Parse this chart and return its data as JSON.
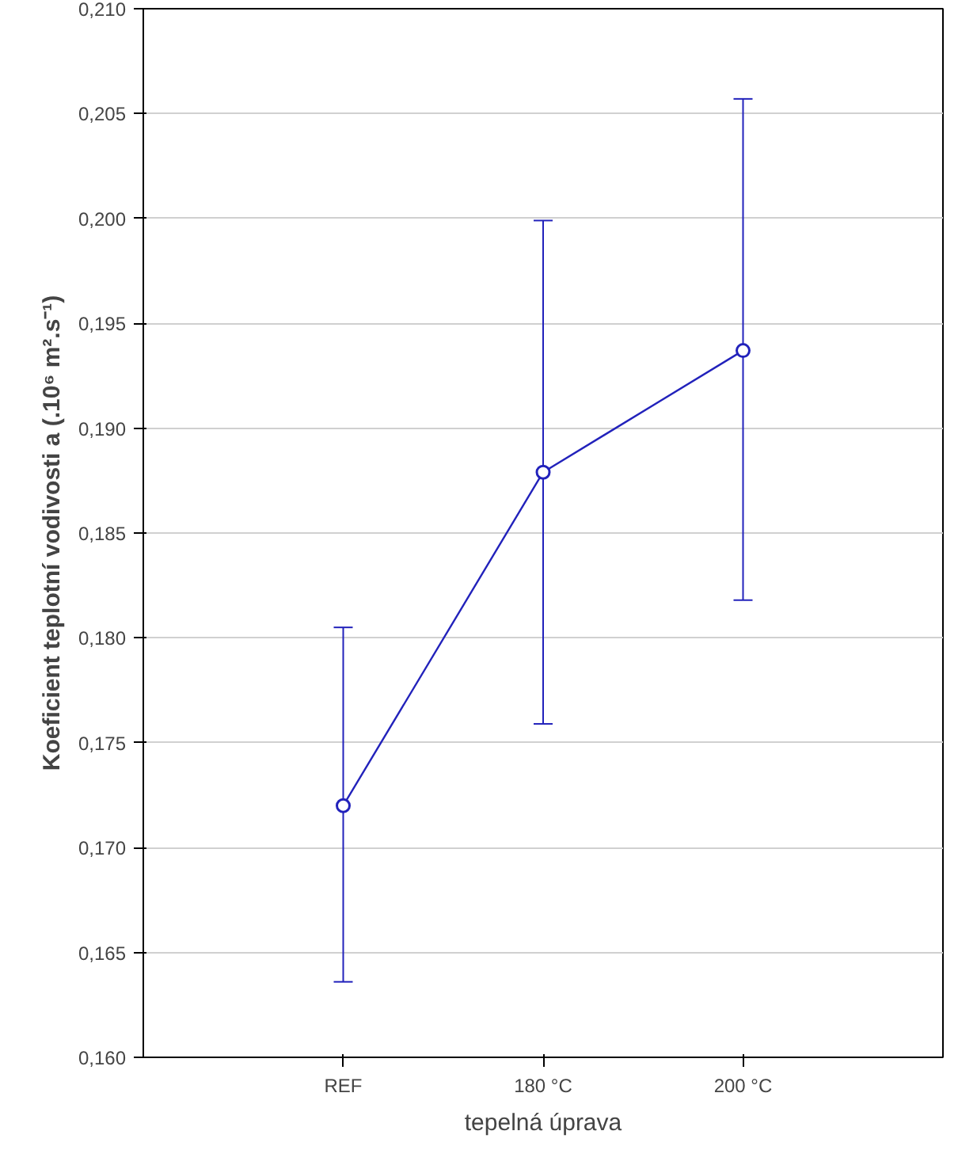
{
  "chart_data": {
    "type": "line",
    "xlabel": "tepelná úprava",
    "ylabel": "Koeficient teplotní vodivosti a (.10⁶ m².s⁻¹)",
    "categories": [
      "REF",
      "180 °C",
      "200 °C"
    ],
    "series": [
      {
        "color": "#2222bb",
        "values": [
          0.172,
          0.1879,
          0.1937
        ],
        "errors": [
          [
            0.1636,
            0.1805
          ],
          [
            0.1759,
            0.1999
          ],
          [
            0.1818,
            0.2057
          ]
        ]
      }
    ],
    "ylim": [
      0.16,
      0.21
    ],
    "yticks": [
      {
        "value": 0.16,
        "label": "0,160"
      },
      {
        "value": 0.165,
        "label": "0,165"
      },
      {
        "value": 0.17,
        "label": "0,170"
      },
      {
        "value": 0.175,
        "label": "0,175"
      },
      {
        "value": 0.18,
        "label": "0,180"
      },
      {
        "value": 0.185,
        "label": "0,185"
      },
      {
        "value": 0.19,
        "label": "0,190"
      },
      {
        "value": 0.195,
        "label": "0,195"
      },
      {
        "value": 0.2,
        "label": "0,200"
      },
      {
        "value": 0.205,
        "label": "0,205"
      },
      {
        "value": 0.21,
        "label": "0,210"
      }
    ],
    "grid": "y",
    "marker": "circle",
    "line_style": "solid"
  }
}
